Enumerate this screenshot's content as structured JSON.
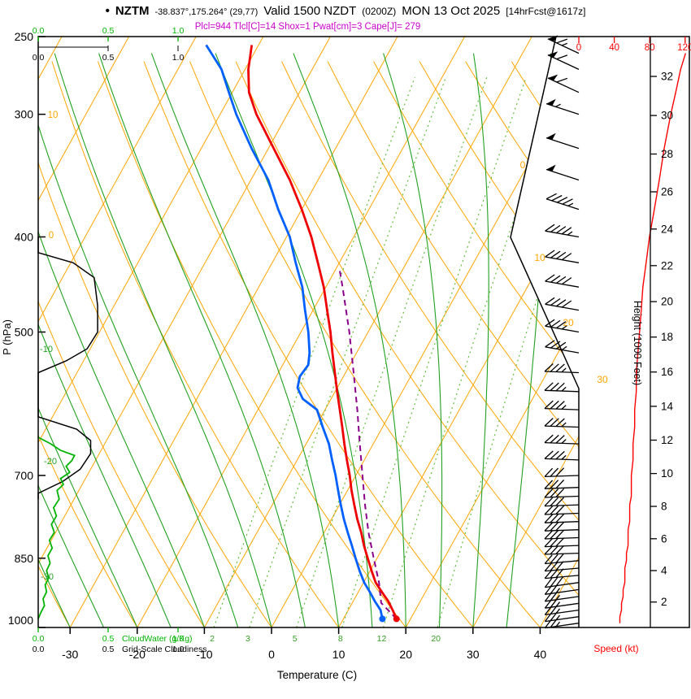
{
  "header": {
    "bullet": "•",
    "station": "NZTM",
    "coords": "-38.837°,175.264° (29,77)",
    "valid": "Valid 1500 NZDT",
    "zulu": "(0200Z)",
    "date": "MON 13 Oct 2025",
    "fcst": "[14hrFcst@1617z]",
    "indices": "Plcl=944 Tlcl[C]=14 Shox=1 Pwat[cm]=3 Cape[J]= 279"
  },
  "axes": {
    "pressure_label": "P (hPa)",
    "pressure_ticks": [
      250,
      300,
      400,
      500,
      700,
      850,
      1000
    ],
    "temp_label": "Temperature (C)",
    "temp_ticks": [
      -30,
      -20,
      -10,
      0,
      10,
      20,
      30,
      40
    ],
    "height_label": "Height (1000 Feet)",
    "height_ticks": [
      2,
      4,
      6,
      8,
      10,
      12,
      14,
      16,
      18,
      20,
      22,
      24,
      26,
      28,
      30,
      32
    ],
    "speed_label": "Speed (kt)",
    "speed_ticks": [
      0,
      40,
      80,
      120
    ],
    "cloudwater_scale_labels": [
      "0.0",
      "0.5",
      "1.0"
    ],
    "cloudwater_label": "CloudWater (g/Kg)",
    "cloudiness_label": "Grid-Scale Cloudiness",
    "isotherm_line_labels": [
      0,
      10,
      20,
      30
    ],
    "dry_adiabat_line_labels": [
      0,
      10
    ],
    "moist_adiabat_line_labels": [
      -10,
      -20,
      -30
    ],
    "mixing_ratio_line_labels": [
      2,
      3,
      5,
      8,
      12,
      20
    ]
  },
  "colors": {
    "temperature": "#ee0000",
    "dewpoint": "#0060ff",
    "parcel": "#8b008b",
    "isotherm": "#ffa500",
    "adiabat_dry": "#ffa500",
    "adiabat_moist": "#21a121",
    "mixing": "#63be3c",
    "cloud_water": "#00b400",
    "cloudiness": "#000000",
    "wind": "#000000",
    "speed_curve": "#ff0000",
    "indices_text": "#cc00cc"
  },
  "chart_data": {
    "type": "line",
    "variant": "skew-t log-p sounding",
    "pressure_range_hPa": [
      1000,
      250
    ],
    "temp_axis_range_C": [
      -35,
      46
    ],
    "grid": "isotherms 10C, dry adiabats 10C, moist adiabats 5C, mixing ratio lines g/kg",
    "temperature_C": [
      [
        980,
        17.9
      ],
      [
        960,
        16.6
      ],
      [
        940,
        15.2
      ],
      [
        920,
        13.5
      ],
      [
        900,
        11.8
      ],
      [
        875,
        10.2
      ],
      [
        850,
        8.6
      ],
      [
        825,
        7.0
      ],
      [
        800,
        5.5
      ],
      [
        775,
        3.8
      ],
      [
        750,
        2.2
      ],
      [
        725,
        0.6
      ],
      [
        700,
        -0.9
      ],
      [
        675,
        -2.6
      ],
      [
        650,
        -4.3
      ],
      [
        625,
        -6.0
      ],
      [
        600,
        -7.8
      ],
      [
        575,
        -9.7
      ],
      [
        550,
        -11.6
      ],
      [
        525,
        -13.6
      ],
      [
        500,
        -15.6
      ],
      [
        475,
        -17.9
      ],
      [
        450,
        -20.3
      ],
      [
        425,
        -23.2
      ],
      [
        400,
        -26.3
      ],
      [
        375,
        -30.0
      ],
      [
        350,
        -34.2
      ],
      [
        325,
        -39.2
      ],
      [
        300,
        -44.6
      ],
      [
        285,
        -47.5
      ],
      [
        270,
        -49.5
      ],
      [
        255,
        -51.0
      ]
    ],
    "dewpoint_C": [
      [
        980,
        15.8
      ],
      [
        960,
        14.8
      ],
      [
        940,
        13.2
      ],
      [
        920,
        11.7
      ],
      [
        900,
        10.1
      ],
      [
        875,
        8.4
      ],
      [
        850,
        6.8
      ],
      [
        825,
        5.2
      ],
      [
        800,
        3.5
      ],
      [
        775,
        1.8
      ],
      [
        750,
        0.2
      ],
      [
        725,
        -1.4
      ],
      [
        700,
        -3.0
      ],
      [
        675,
        -4.8
      ],
      [
        650,
        -6.6
      ],
      [
        625,
        -8.9
      ],
      [
        600,
        -11.2
      ],
      [
        585,
        -14.2
      ],
      [
        570,
        -15.9
      ],
      [
        555,
        -16.5
      ],
      [
        540,
        -16.2
      ],
      [
        525,
        -17.0
      ],
      [
        500,
        -18.9
      ],
      [
        475,
        -21.2
      ],
      [
        450,
        -23.5
      ],
      [
        425,
        -26.5
      ],
      [
        400,
        -29.5
      ],
      [
        375,
        -33.5
      ],
      [
        350,
        -37.4
      ],
      [
        325,
        -42.5
      ],
      [
        300,
        -47.6
      ],
      [
        285,
        -50.5
      ],
      [
        270,
        -53.5
      ],
      [
        255,
        -57.8
      ]
    ],
    "parcel_C": [
      [
        980,
        17.9
      ],
      [
        944,
        14.3
      ],
      [
        900,
        12.3
      ],
      [
        850,
        9.5
      ],
      [
        800,
        6.6
      ],
      [
        750,
        3.8
      ],
      [
        700,
        1.0
      ],
      [
        650,
        -2.0
      ],
      [
        600,
        -5.2
      ],
      [
        550,
        -8.8
      ],
      [
        500,
        -12.8
      ],
      [
        450,
        -17.5
      ],
      [
        430,
        -19.6
      ]
    ],
    "wind_kt": [
      [
        990,
        262,
        25
      ],
      [
        975,
        262,
        25
      ],
      [
        960,
        262,
        26
      ],
      [
        945,
        262,
        26
      ],
      [
        930,
        262,
        27
      ],
      [
        915,
        262,
        27
      ],
      [
        900,
        262,
        28
      ],
      [
        885,
        265,
        28
      ],
      [
        870,
        265,
        28
      ],
      [
        855,
        265,
        29
      ],
      [
        840,
        268,
        29
      ],
      [
        825,
        268,
        30
      ],
      [
        810,
        268,
        30
      ],
      [
        795,
        268,
        30
      ],
      [
        780,
        268,
        31
      ],
      [
        765,
        268,
        31
      ],
      [
        750,
        268,
        31
      ],
      [
        735,
        268,
        32
      ],
      [
        720,
        268,
        32
      ],
      [
        700,
        268,
        32
      ],
      [
        675,
        272,
        33
      ],
      [
        650,
        272,
        33
      ],
      [
        625,
        272,
        34
      ],
      [
        600,
        272,
        34
      ],
      [
        575,
        272,
        35
      ],
      [
        550,
        272,
        35
      ],
      [
        525,
        280,
        36
      ],
      [
        500,
        280,
        37
      ],
      [
        475,
        280,
        38
      ],
      [
        450,
        280,
        39
      ],
      [
        425,
        280,
        41
      ],
      [
        400,
        280,
        43
      ],
      [
        375,
        288,
        46
      ],
      [
        350,
        288,
        49
      ],
      [
        325,
        288,
        52
      ],
      [
        300,
        288,
        56
      ],
      [
        285,
        295,
        59
      ],
      [
        270,
        295,
        62
      ],
      [
        260,
        295,
        65
      ]
    ],
    "cloud_water_gkg": [
      [
        640,
        0
      ],
      [
        650,
        0.18
      ],
      [
        660,
        0.32
      ],
      [
        668,
        0.52
      ],
      [
        676,
        0.48
      ],
      [
        685,
        0.4
      ],
      [
        695,
        0.45
      ],
      [
        705,
        0.32
      ],
      [
        715,
        0.36
      ],
      [
        725,
        0.27
      ],
      [
        740,
        0.3
      ],
      [
        755,
        0.22
      ],
      [
        770,
        0.26
      ],
      [
        785,
        0.19
      ],
      [
        800,
        0.23
      ],
      [
        815,
        0.16
      ],
      [
        830,
        0.2
      ],
      [
        845,
        0.14
      ],
      [
        860,
        0.17
      ],
      [
        875,
        0.12
      ],
      [
        890,
        0.15
      ],
      [
        905,
        0.1
      ],
      [
        920,
        0.12
      ],
      [
        935,
        0.07
      ],
      [
        950,
        0.09
      ],
      [
        965,
        0.04
      ],
      [
        980,
        0
      ]
    ],
    "cloudiness_frac": [
      [
        400,
        0
      ],
      [
        415,
        0
      ],
      [
        425,
        0.5
      ],
      [
        440,
        0.8
      ],
      [
        470,
        0.85
      ],
      [
        500,
        0.85
      ],
      [
        520,
        0.7
      ],
      [
        535,
        0.4
      ],
      [
        550,
        0
      ],
      [
        610,
        0
      ],
      [
        628,
        0.55
      ],
      [
        645,
        0.75
      ],
      [
        665,
        0.75
      ],
      [
        690,
        0.6
      ],
      [
        710,
        0.35
      ],
      [
        730,
        0
      ],
      [
        740,
        0
      ]
    ]
  }
}
